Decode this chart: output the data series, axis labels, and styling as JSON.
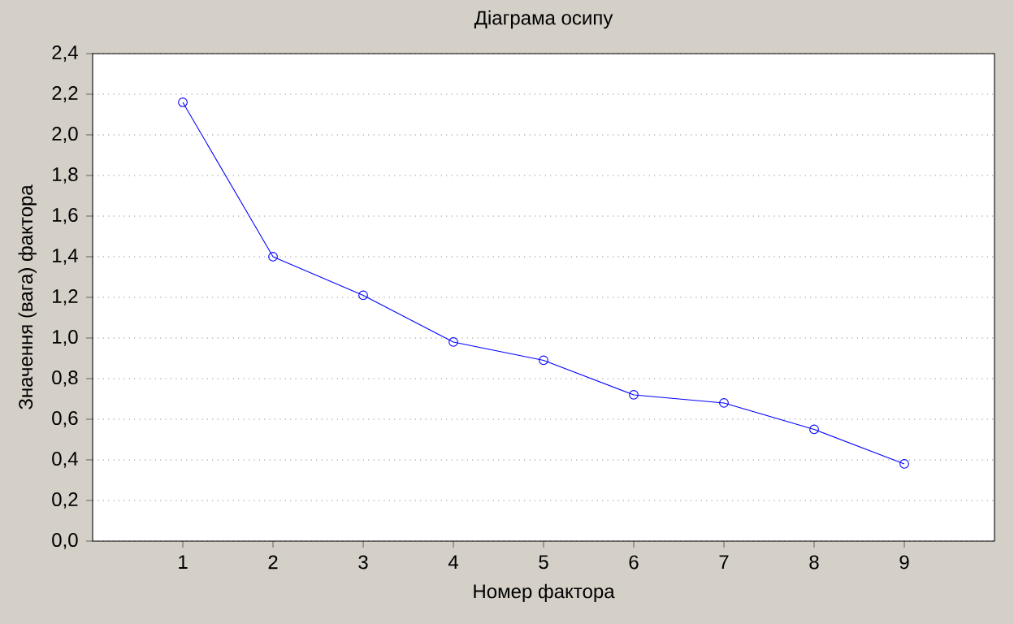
{
  "chart_data": {
    "type": "line",
    "title": "Діаграма осипу",
    "xlabel": "Номер фактора",
    "ylabel": "Значення (вага) фактора",
    "x": [
      1,
      2,
      3,
      4,
      5,
      6,
      7,
      8,
      9
    ],
    "values": [
      2.16,
      1.4,
      1.21,
      0.98,
      0.89,
      0.72,
      0.68,
      0.55,
      0.38
    ],
    "color": "#0000ff",
    "marker": "circle",
    "line_style": "solid",
    "grid": "y",
    "xlim": [
      0,
      10
    ],
    "xticks": [
      1,
      2,
      3,
      4,
      5,
      6,
      7,
      8,
      9
    ],
    "ylim": [
      0,
      2.4
    ],
    "yticks": [
      {
        "value": 0,
        "label": "0,0"
      },
      {
        "value": 0.2,
        "label": "0,2"
      },
      {
        "value": 0.4,
        "label": "0,4"
      },
      {
        "value": 0.6,
        "label": "0,6"
      },
      {
        "value": 0.8,
        "label": "0,8"
      },
      {
        "value": 1.0,
        "label": "1,0"
      },
      {
        "value": 1.2,
        "label": "1,2"
      },
      {
        "value": 1.4,
        "label": "1,4"
      },
      {
        "value": 1.6,
        "label": "1,6"
      },
      {
        "value": 1.8,
        "label": "1,8"
      },
      {
        "value": 2.0,
        "label": "2,0"
      },
      {
        "value": 2.2,
        "label": "2,2"
      },
      {
        "value": 2.4,
        "label": "2,4"
      }
    ]
  }
}
